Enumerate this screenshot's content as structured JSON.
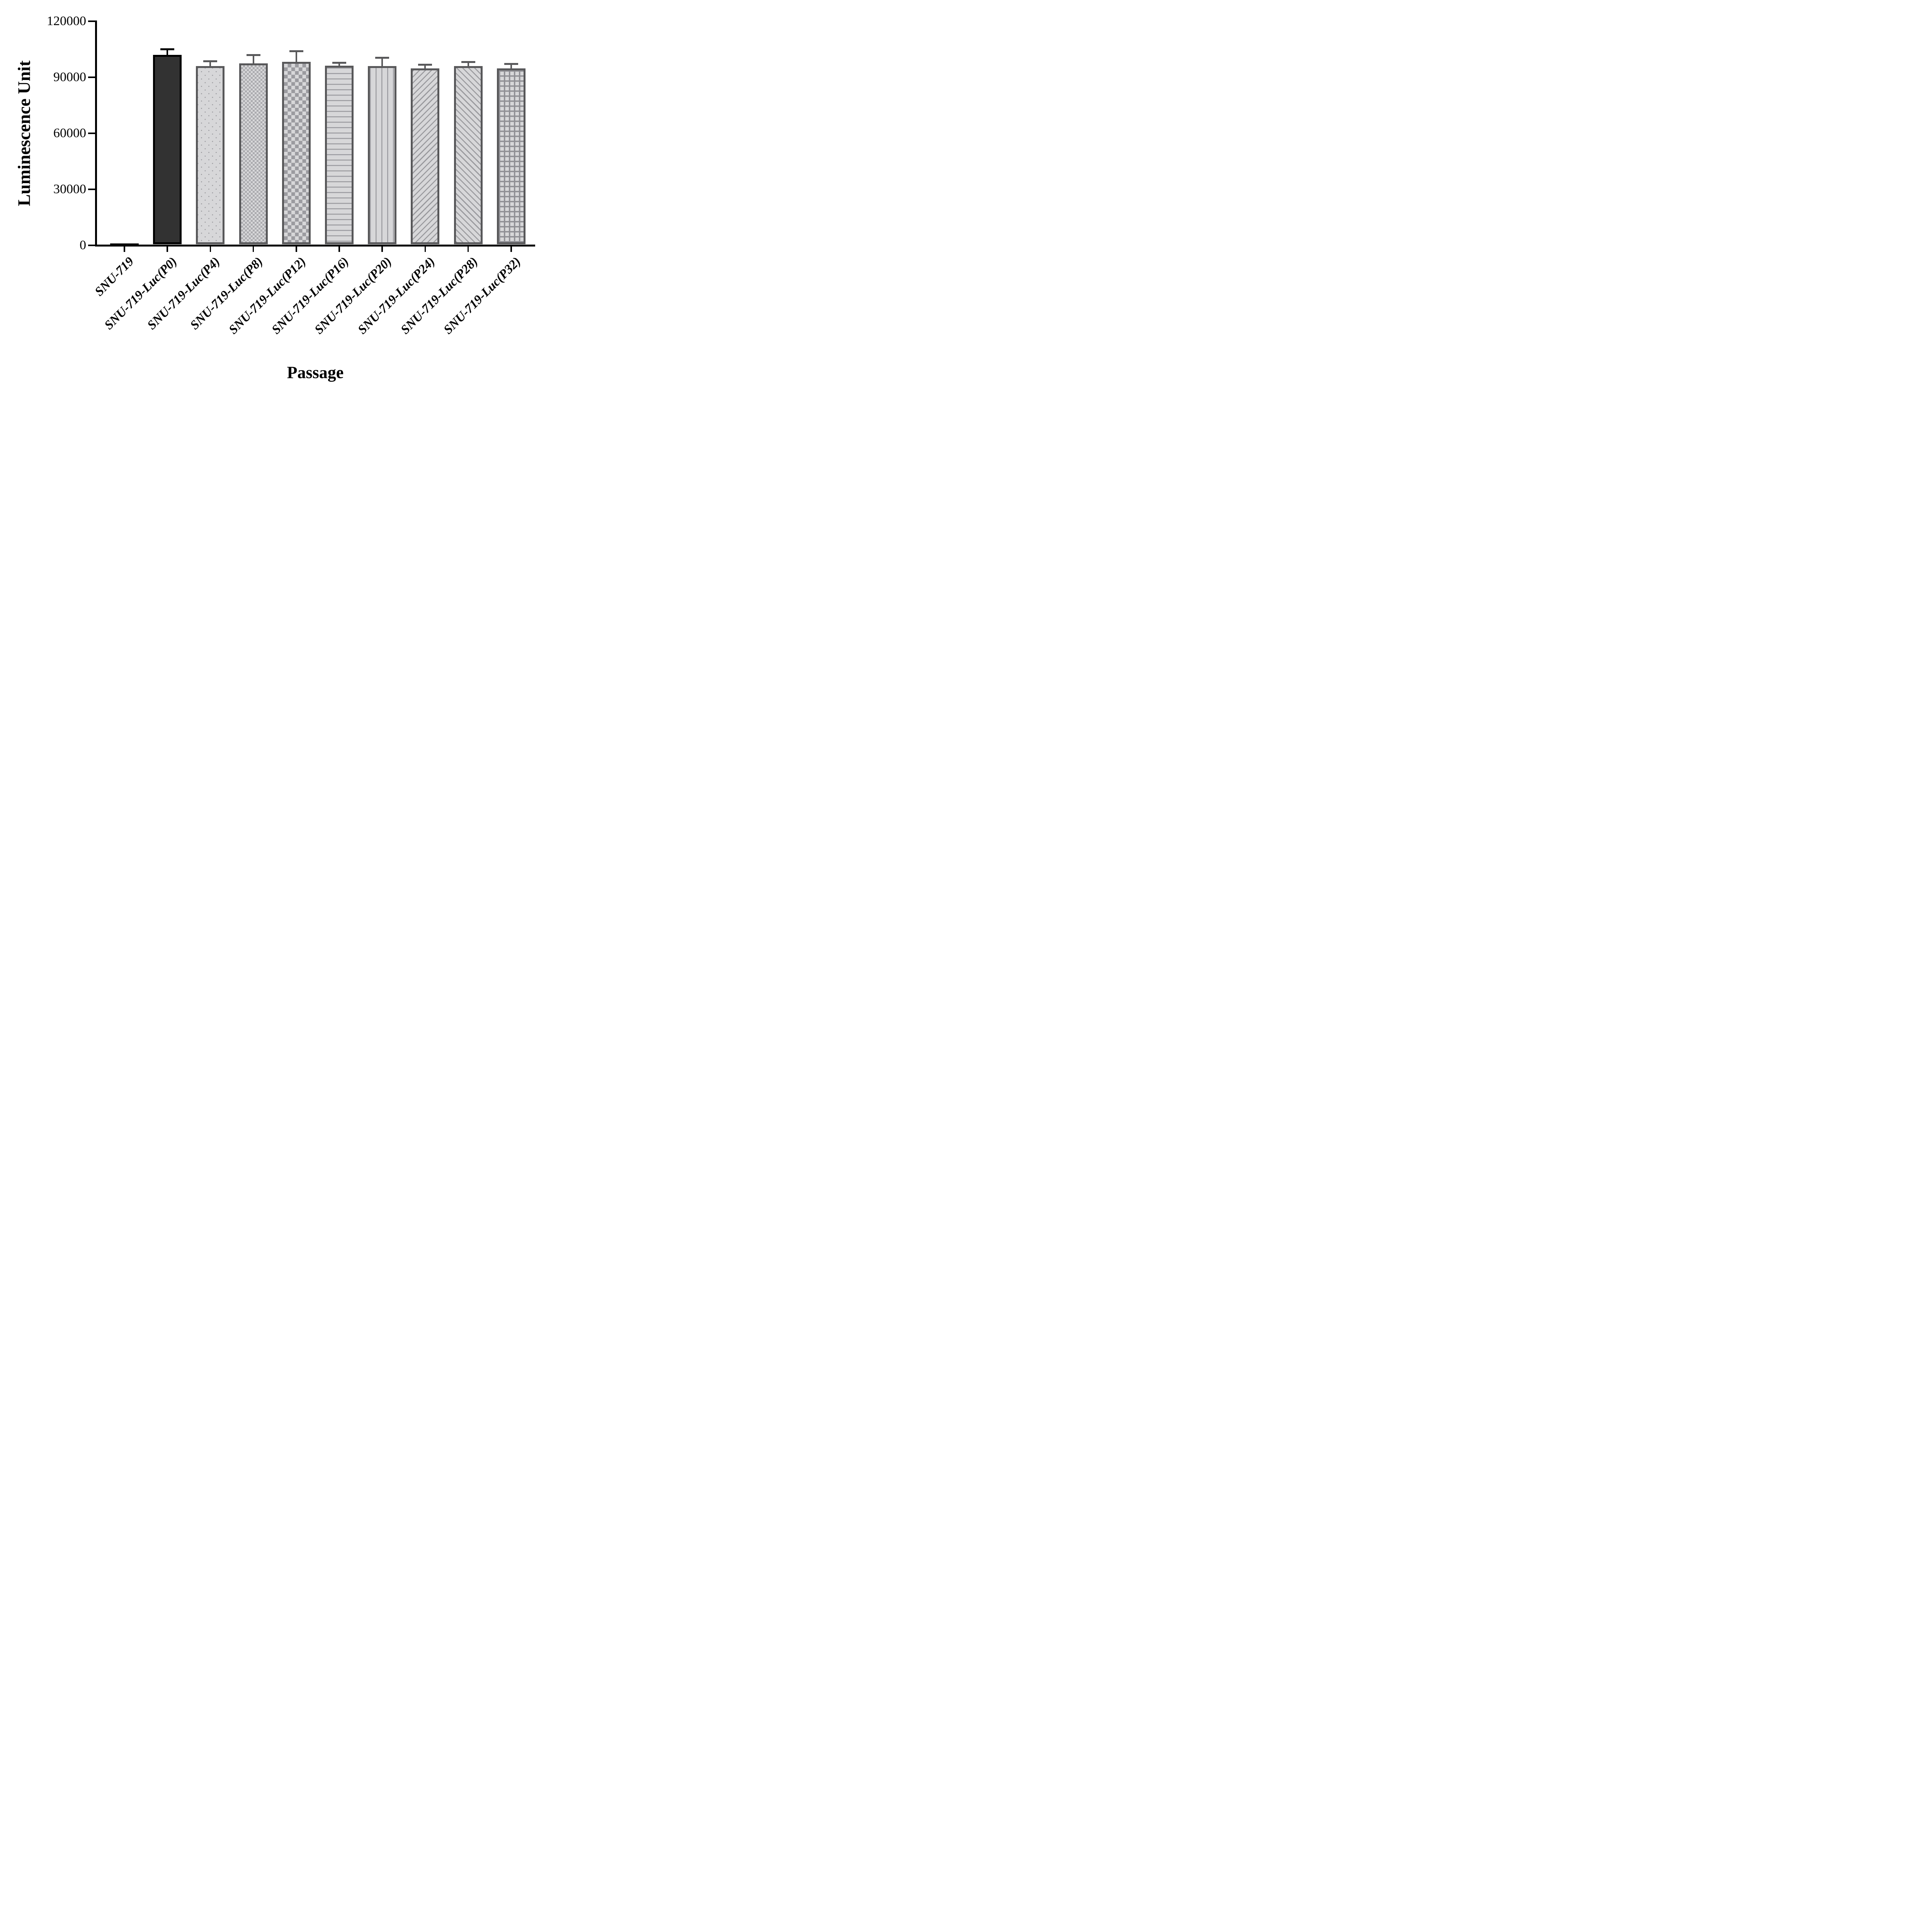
{
  "chart_data": {
    "type": "bar",
    "title": "",
    "xlabel": "Passage",
    "ylabel": "Luminescence Unit",
    "ylim": [
      0,
      120000
    ],
    "y_ticks": [
      0,
      30000,
      60000,
      90000,
      120000
    ],
    "grid": false,
    "legend": "none",
    "error_bars": "upper SD whiskers with caps",
    "categories": [
      "SNU-719",
      "SNU-719-Luc(P0)",
      "SNU-719-Luc(P4)",
      "SNU-719-Luc(P8)",
      "SNU-719-Luc(P12)",
      "SNU-719-Luc(P16)",
      "SNU-719-Luc(P20)",
      "SNU-719-Luc(P24)",
      "SNU-719-Luc(P28)",
      "SNU-719-Luc(P32)"
    ],
    "values": [
      600,
      101400,
      95500,
      96900,
      97800,
      95600,
      95500,
      94300,
      95500,
      94300
    ],
    "errors": [
      0,
      3000,
      2600,
      4400,
      5700,
      1600,
      4500,
      2000,
      2100,
      2300
    ],
    "bar_patterns": [
      "solid-black",
      "solid-dark",
      "dots",
      "checker-fine",
      "checker-coarse",
      "hlines",
      "vlines",
      "diag-up",
      "diag-down",
      "grid"
    ],
    "colors": {
      "axis": "#000000",
      "dark_bar_fill": "#323232",
      "dark_bar_border": "#000000",
      "light_bar_fill": "#d7d7d9",
      "pattern_line": "#98989c",
      "gray_bar_border": "#58585a",
      "gray_error_bar": "#58585a",
      "black_error_bar": "#000000"
    }
  }
}
